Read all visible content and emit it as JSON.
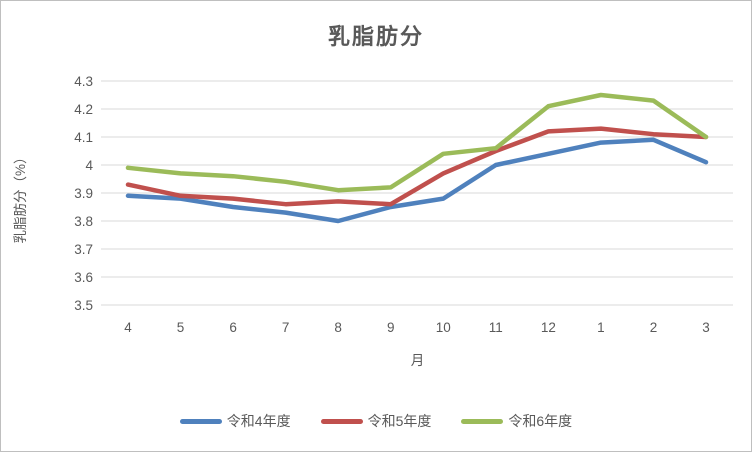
{
  "title": "乳脂肪分",
  "chart_data": {
    "type": "line",
    "title": "乳脂肪分",
    "xlabel": "月",
    "ylabel": "乳脂肪分（%）",
    "categories": [
      "4",
      "5",
      "6",
      "7",
      "8",
      "9",
      "10",
      "11",
      "12",
      "1",
      "2",
      "3"
    ],
    "series": [
      {
        "name": "令和4年度",
        "color": "#4F81BD",
        "values": [
          3.89,
          3.88,
          3.85,
          3.83,
          3.8,
          3.85,
          3.88,
          4.0,
          4.04,
          4.08,
          4.09,
          4.01
        ]
      },
      {
        "name": "令和5年度",
        "color": "#C0504D",
        "values": [
          3.93,
          3.89,
          3.88,
          3.86,
          3.87,
          3.86,
          3.97,
          4.05,
          4.12,
          4.13,
          4.11,
          4.1
        ]
      },
      {
        "name": "令和6年度",
        "color": "#9BBB59",
        "values": [
          3.99,
          3.97,
          3.96,
          3.94,
          3.91,
          3.92,
          4.04,
          4.06,
          4.21,
          4.25,
          4.23,
          4.1
        ]
      }
    ],
    "ylim": [
      3.5,
      4.3
    ],
    "ytick_step": 0.1,
    "yticks": [
      "4.3",
      "4.2",
      "4.1",
      "4",
      "3.9",
      "3.8",
      "3.7",
      "3.6",
      "3.5"
    ],
    "grid": true,
    "legend_position": "bottom",
    "gridline_color": "#D9D9D9",
    "text_color": "#595959"
  }
}
